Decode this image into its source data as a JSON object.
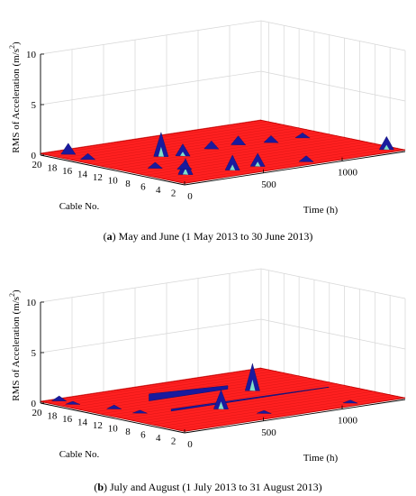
{
  "charts": [
    {
      "caption_letter": "a",
      "caption_text": " May and June (1 May 2013 to 30 June 2013)",
      "zlabel": "RMS of Acceleration (m/s",
      "zlabel_sup": "2",
      "zlabel_close": ")",
      "xlabel": "Cable No.",
      "ylabel": "Time (h)",
      "z_ticks": [
        "0",
        "5",
        "10"
      ],
      "cable_ticks": [
        "20",
        "18",
        "16",
        "14",
        "12",
        "10",
        "8",
        "6",
        "4",
        "2"
      ],
      "time_ticks": [
        "0",
        "500",
        "1000"
      ]
    },
    {
      "caption_letter": "b",
      "caption_text": " July and August (1 July 2013 to 31 August 2013)",
      "zlabel": "RMS of Acceleration (m/s",
      "zlabel_sup": "2",
      "zlabel_close": ")",
      "xlabel": "Cable No.",
      "ylabel": "Time (h)",
      "z_ticks": [
        "0",
        "5",
        "10"
      ],
      "cable_ticks": [
        "20",
        "18",
        "16",
        "14",
        "12",
        "10",
        "8",
        "6",
        "4",
        "2"
      ],
      "time_ticks": [
        "0",
        "500",
        "1000"
      ]
    }
  ],
  "chart_data": [
    {
      "type": "surface3d",
      "title": "",
      "x_axis": "Cable No.",
      "y_axis": "Time (h)",
      "z_axis": "RMS of Acceleration (m/s2)",
      "xlim": [
        1,
        20
      ],
      "ylim": [
        0,
        1400
      ],
      "zlim": [
        0,
        10
      ],
      "grid": true,
      "surface_color": "#ff2020",
      "peak_color": "#1a1a9e",
      "peaks": [
        {
          "cable": 18,
          "time": 80,
          "rms": 1.3
        },
        {
          "cable": 15,
          "time": 60,
          "rms": 0.8
        },
        {
          "cable": 12,
          "time": 380,
          "rms": 2.6
        },
        {
          "cable": 11,
          "time": 470,
          "rms": 1.4
        },
        {
          "cable": 12,
          "time": 700,
          "rms": 1.0
        },
        {
          "cable": 12,
          "time": 870,
          "rms": 1.1
        },
        {
          "cable": 11,
          "time": 1030,
          "rms": 0.9
        },
        {
          "cable": 11,
          "time": 1230,
          "rms": 0.7
        },
        {
          "cable": 4,
          "time": 150,
          "rms": 1.8
        },
        {
          "cable": 3,
          "time": 400,
          "rms": 1.7
        },
        {
          "cable": 3,
          "time": 560,
          "rms": 1.5
        },
        {
          "cable": 2,
          "time": 820,
          "rms": 0.8
        },
        {
          "cable": 2,
          "time": 1330,
          "rms": 1.5
        },
        {
          "cable": 6,
          "time": 240,
          "rms": 1.0
        },
        {
          "cable": 8,
          "time": 150,
          "rms": 0.8
        }
      ]
    },
    {
      "type": "surface3d",
      "title": "",
      "x_axis": "Cable No.",
      "y_axis": "Time (h)",
      "z_axis": "RMS of Acceleration (m/s2)",
      "xlim": [
        1,
        20
      ],
      "ylim": [
        0,
        1400
      ],
      "zlim": [
        0,
        10
      ],
      "grid": true,
      "surface_color": "#ff2020",
      "peak_color": "#1a1a9e",
      "peaks": [
        {
          "cable": 12,
          "time": 960,
          "rms": 2.9
        },
        {
          "cable": 7,
          "time": 520,
          "rms": 2.1
        },
        {
          "cable": 19,
          "time": 70,
          "rms": 0.7
        },
        {
          "cable": 17,
          "time": 60,
          "rms": 0.5
        },
        {
          "cable": 13,
          "time": 130,
          "rms": 0.6
        },
        {
          "cable": 10,
          "time": 150,
          "rms": 0.5
        },
        {
          "cable": 3,
          "time": 600,
          "rms": 0.5
        },
        {
          "cable": 2,
          "time": 1100,
          "rms": 0.5
        }
      ],
      "ridges": [
        {
          "cable": 14,
          "time_from": 400,
          "time_to": 900,
          "rms": 0.9
        },
        {
          "cable": 9,
          "time_from": 300,
          "time_to": 1300,
          "rms": 0.4
        }
      ]
    }
  ]
}
